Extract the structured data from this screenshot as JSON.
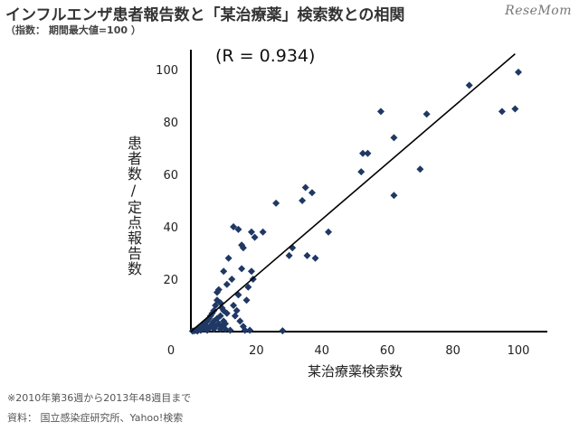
{
  "header": {
    "title": "インフルエンザ患者報告数と「某治療薬」検索数との相関",
    "subtitle": "（指数： 期間最大値=100 ）",
    "logo": "ReseMom"
  },
  "footer": {
    "note": "※2010年第36週から2013年48週目まで",
    "source": "資料： 国立感染症研究所、Yahoo!検索"
  },
  "chart_data": {
    "type": "scatter",
    "title": "インフルエンザ患者報告数と「某治療薬」検索数との相関",
    "xlabel": "某治療薬検索数",
    "ylabel": "患者数/定点報告数",
    "annotation": "(R = 0.934)",
    "xlim": [
      0,
      100
    ],
    "ylim": [
      0,
      105
    ],
    "x_ticks": [
      0,
      20,
      40,
      60,
      80,
      100
    ],
    "y_ticks": [
      20,
      40,
      60,
      80,
      100
    ],
    "grid": false,
    "point_color": "#1f3864",
    "trendline": {
      "x": [
        0,
        99
      ],
      "y": [
        0,
        106
      ]
    },
    "points": [
      [
        0.5,
        0.2
      ],
      [
        1,
        0.3
      ],
      [
        1.5,
        0.5
      ],
      [
        2,
        0.2
      ],
      [
        2,
        0.8
      ],
      [
        2.5,
        1
      ],
      [
        3,
        0.5
      ],
      [
        3,
        1.5
      ],
      [
        3.5,
        2
      ],
      [
        4,
        1
      ],
      [
        4,
        3
      ],
      [
        4.5,
        2.5
      ],
      [
        5,
        0.5
      ],
      [
        5,
        4
      ],
      [
        5.5,
        1.5
      ],
      [
        5.5,
        5
      ],
      [
        6,
        2
      ],
      [
        6,
        6
      ],
      [
        6.5,
        3
      ],
      [
        6.5,
        7
      ],
      [
        7,
        1
      ],
      [
        7,
        4
      ],
      [
        7,
        8
      ],
      [
        7.5,
        2
      ],
      [
        7.5,
        10
      ],
      [
        8,
        5
      ],
      [
        8,
        12
      ],
      [
        8,
        15
      ],
      [
        8.5,
        3
      ],
      [
        8.5,
        16
      ],
      [
        9,
        1
      ],
      [
        9,
        6
      ],
      [
        9,
        11
      ],
      [
        9.5,
        2
      ],
      [
        9.5,
        9
      ],
      [
        10,
        4
      ],
      [
        10,
        8
      ],
      [
        10,
        23
      ],
      [
        10.5,
        1
      ],
      [
        10.5,
        3
      ],
      [
        11,
        7
      ],
      [
        11,
        18
      ],
      [
        11.5,
        28
      ],
      [
        12,
        0.5
      ],
      [
        12.5,
        20
      ],
      [
        13,
        10
      ],
      [
        13,
        40
      ],
      [
        13.5,
        6
      ],
      [
        14,
        8
      ],
      [
        14.5,
        14
      ],
      [
        14.5,
        39
      ],
      [
        15,
        4
      ],
      [
        15.5,
        24
      ],
      [
        15.5,
        33
      ],
      [
        16,
        32
      ],
      [
        16,
        2
      ],
      [
        16.5,
        0.5
      ],
      [
        17,
        12
      ],
      [
        17.5,
        17
      ],
      [
        18,
        0.5
      ],
      [
        18.5,
        23
      ],
      [
        18.5,
        38
      ],
      [
        19,
        20
      ],
      [
        19.5,
        36
      ],
      [
        22,
        38
      ],
      [
        26,
        49
      ],
      [
        28,
        0.3
      ],
      [
        30,
        29
      ],
      [
        31,
        32
      ],
      [
        34,
        50
      ],
      [
        35,
        55
      ],
      [
        35.5,
        29
      ],
      [
        37,
        53
      ],
      [
        38,
        28
      ],
      [
        42,
        38
      ],
      [
        52,
        61
      ],
      [
        52.5,
        68
      ],
      [
        54,
        68
      ],
      [
        58,
        84
      ],
      [
        62,
        52
      ],
      [
        62,
        74
      ],
      [
        70,
        62
      ],
      [
        72,
        83
      ],
      [
        85,
        94
      ],
      [
        95,
        84
      ],
      [
        99,
        85
      ],
      [
        100,
        99
      ]
    ]
  }
}
